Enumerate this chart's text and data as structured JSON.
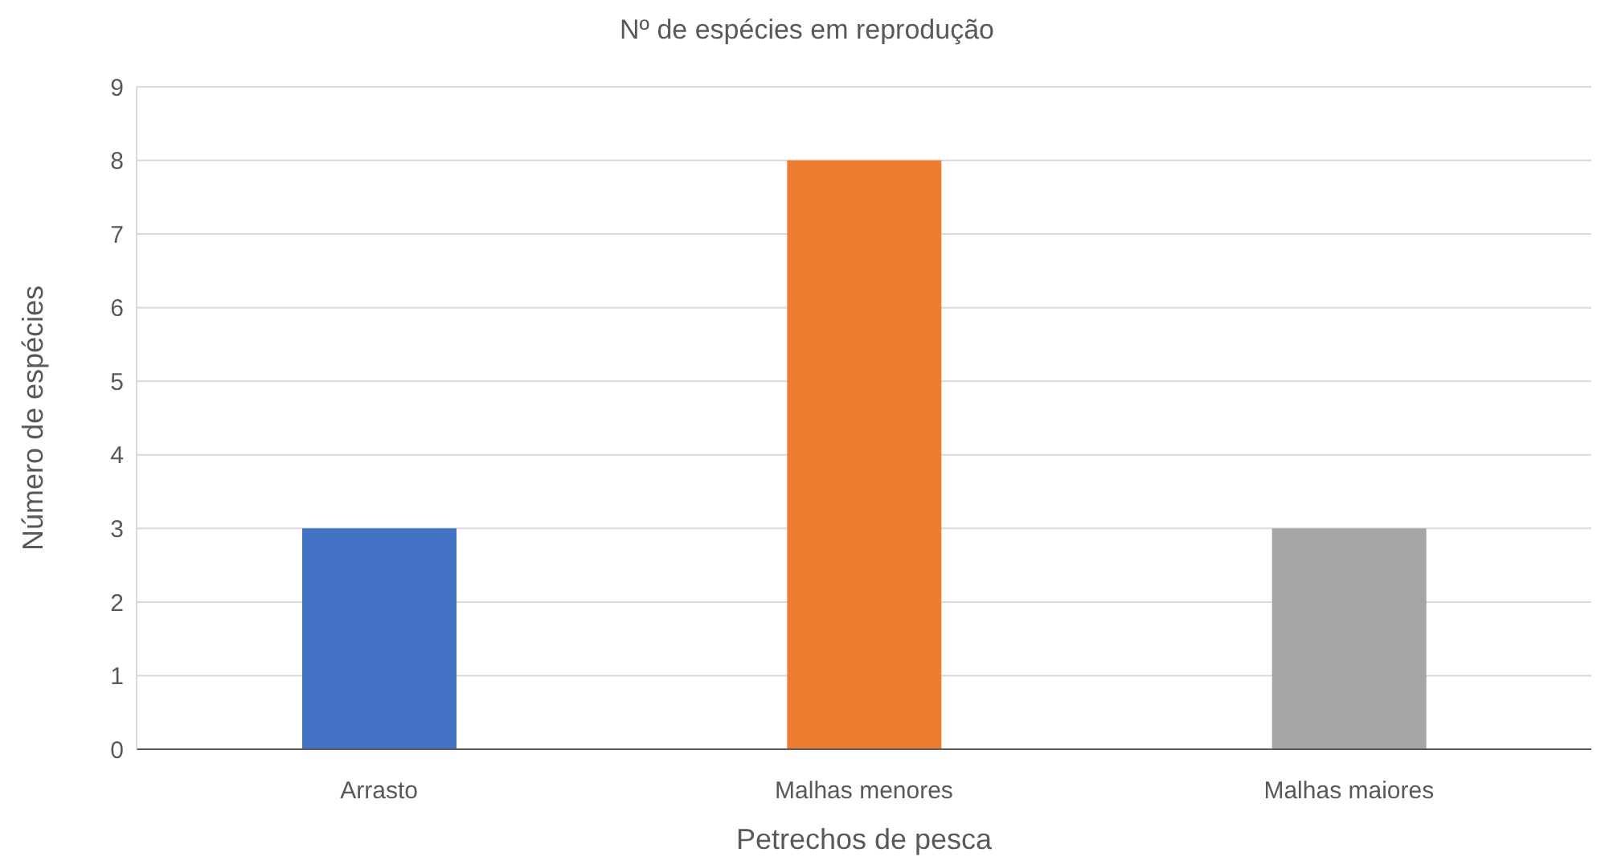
{
  "chart_data": {
    "type": "bar",
    "title": "Nº de espécies em reprodução",
    "xlabel": "Petrechos de pesca",
    "ylabel": "Número de espécies",
    "categories": [
      "Arrasto",
      "Malhas menores",
      "Malhas maiores"
    ],
    "values": [
      3,
      8,
      3
    ],
    "colors": [
      "#4472c4",
      "#ed7d31",
      "#a5a5a5"
    ],
    "ylim": [
      0,
      9
    ],
    "yticks": [
      0,
      1,
      2,
      3,
      4,
      5,
      6,
      7,
      8,
      9
    ],
    "grid": "y"
  }
}
